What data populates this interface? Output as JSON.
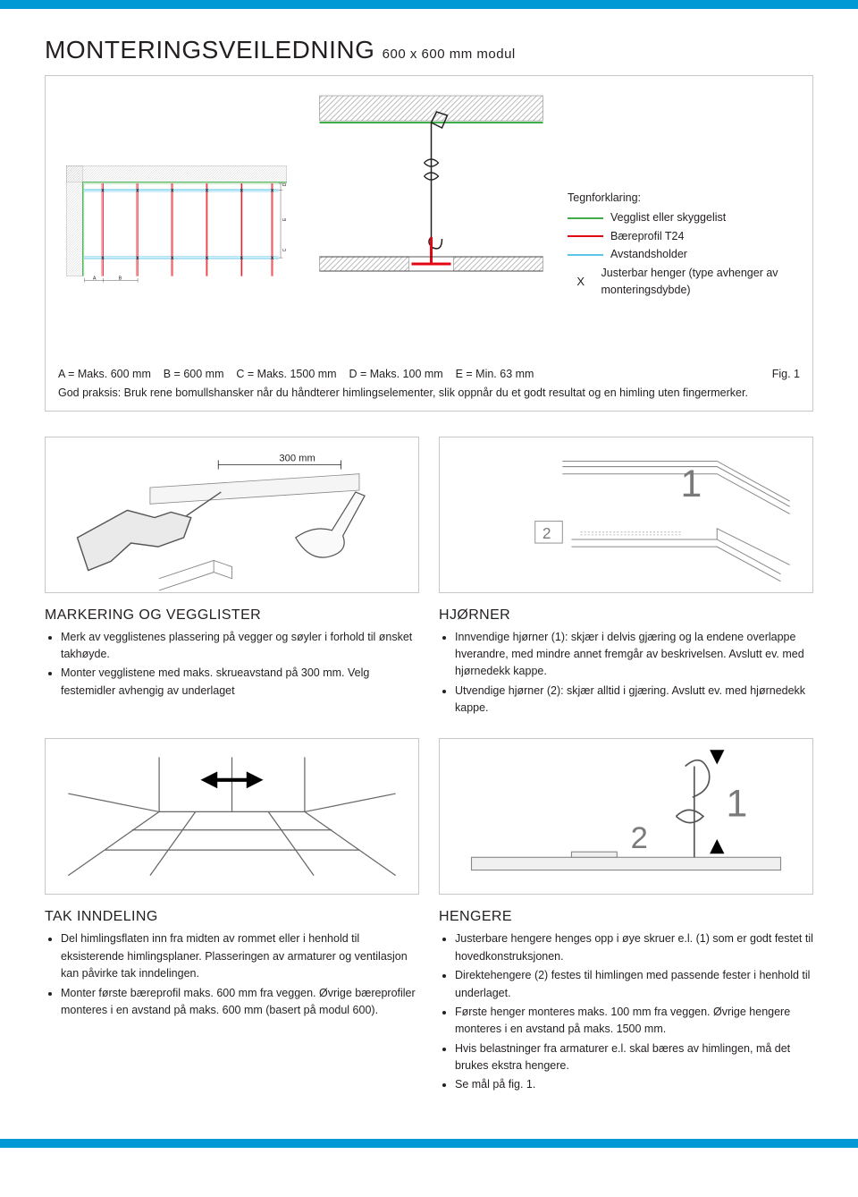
{
  "colors": {
    "accent": "#0099d6",
    "green": "#3fae49",
    "red": "#e30613",
    "cyan": "#5bc5e8",
    "grey_border": "#c7c7c7",
    "grey_text": "#7a7a7a",
    "hatch": "#bdbdbd",
    "black": "#231f20"
  },
  "title_main": "MONTERINGSVEILEDNING",
  "title_sub": "600 x 600 mm modul",
  "legend": {
    "title": "Tegnforklaring:",
    "items": [
      {
        "label": "Vegglist eller skyggelist",
        "color": "#3fae49"
      },
      {
        "label": "Bæreprofil T24",
        "color": "#e30613"
      },
      {
        "label": "Avstandsholder",
        "color": "#5bc5e8"
      },
      {
        "label": "Justerbar henger (type avhenger av monteringsdybde)",
        "symbol": "X"
      }
    ]
  },
  "plan": {
    "labels": {
      "A": "A",
      "B": "B",
      "C": "C",
      "D": "D",
      "E": "E"
    },
    "red_x": [
      110,
      195,
      280,
      365,
      450,
      525
    ],
    "cyan_rows": [
      80,
      245
    ],
    "dim_labels": [
      "D",
      "E",
      "C"
    ],
    "bottom_labels": [
      "A",
      "B"
    ]
  },
  "dims_line": "A = Maks. 600 mm    B = 600 mm    C = Maks. 1500 mm    D = Maks. 100 mm    E = Min. 63 mm",
  "fig_no": "Fig. 1",
  "praksis": "God praksis: Bruk rene bomullshansker når du håndterer himlingselementer, slik oppnår du et godt resultat og en himling uten fingermerker.",
  "steps": [
    {
      "title": "MARKERING OG VEGGLISTER",
      "label_300": "300 mm",
      "bullets": [
        "Merk av vegglistenes plassering på vegger og søyler i forhold til ønsket takhøyde.",
        "Monter vegglistene med maks. skrueavstand på 300 mm. Velg festemidler avhengig av underlaget"
      ]
    },
    {
      "title": "HJØRNER",
      "n1": "1",
      "n2": "2",
      "bullets": [
        "Innvendige hjørner (1): skjær i delvis gjæring og la endene overlappe hverandre, med mindre annet fremgår av beskrivelsen. Avslutt ev. med hjørnedekk kappe.",
        "Utvendige hjørner (2): skjær alltid i gjæring. Avslutt ev. med hjørnedekk kappe."
      ]
    },
    {
      "title": "TAK INNDELING",
      "bullets": [
        "Del himlingsflaten inn fra midten av rommet eller i henhold til eksisterende himlingsplaner. Plasseringen av armaturer og ventilasjon kan påvirke tak inndelingen.",
        "Monter første bæreprofil maks. 600 mm fra veggen. Øvrige bæreprofiler monteres i en avstand på maks. 600 mm (basert på modul 600)."
      ]
    },
    {
      "title": "HENGERE",
      "n1": "1",
      "n2": "2",
      "bullets": [
        "Justerbare hengere henges opp i øye skruer e.l. (1) som er godt festet til hovedkonstruksjonen.",
        "Direktehengere (2) festes til himlingen med passende fester i henhold til underlaget.",
        "Første henger monteres maks. 100 mm fra veggen. Øvrige hengere monteres i en avstand på maks. 1500 mm.",
        "Hvis belastninger fra armaturer e.l. skal bæres av himlingen, må det brukes ekstra hengere.",
        "Se mål på fig. 1."
      ]
    }
  ]
}
